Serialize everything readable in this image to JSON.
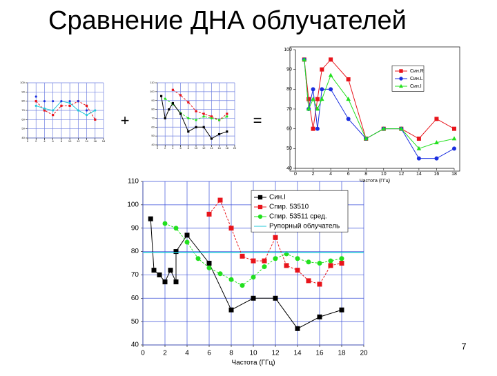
{
  "title": "Сравнение ДНА облучателей",
  "operators": [
    "+",
    "="
  ],
  "page_number": "7",
  "chart_data": [
    {
      "type": "line",
      "x_label": "Частота (ГГц)",
      "xlim": [
        0,
        20
      ],
      "xticks": [
        0,
        2,
        4,
        6,
        8,
        10,
        12,
        14,
        16,
        18,
        20
      ],
      "ylim": [
        40,
        110
      ],
      "yticks": [
        40,
        50,
        60,
        70,
        80,
        90,
        100,
        110
      ],
      "grid": true,
      "grid_color": "#3a4fd8",
      "series": [
        {
          "name": "Син.I",
          "color": "#000000",
          "marker": "square",
          "line": "solid",
          "x": [
            0.7,
            1,
            1.5,
            2,
            2.5,
            3,
            3,
            4,
            6,
            8,
            10,
            12,
            14,
            16,
            18
          ],
          "values": [
            94,
            72,
            70,
            67,
            72,
            67,
            80,
            87,
            75,
            55,
            60,
            60,
            47,
            52,
            55
          ]
        },
        {
          "name": "Спир. 53510",
          "color": "#e8141b",
          "marker": "square",
          "line": "dashed",
          "x": [
            6,
            7,
            8,
            9,
            10,
            11,
            12,
            13,
            14,
            15,
            16,
            17,
            18
          ],
          "values": [
            96,
            102,
            90,
            78,
            76,
            76,
            86,
            74,
            72,
            67.5,
            66,
            74,
            75
          ]
        },
        {
          "name": "Спир. 53511 сред.",
          "color": "#22e01e",
          "marker": "circle",
          "line": "dashed",
          "x": [
            2,
            3,
            4,
            5,
            6,
            7,
            8,
            9,
            10,
            11,
            12,
            13,
            14,
            15,
            16,
            17,
            18
          ],
          "values": [
            92,
            90,
            84,
            77,
            73,
            70.5,
            68,
            65.5,
            69,
            73.5,
            77,
            79,
            77,
            75.5,
            75,
            76,
            77
          ]
        },
        {
          "name": "Рупорный облучатель",
          "color": "#22c8d8",
          "marker": "none",
          "line": "solid",
          "x": [
            0,
            20
          ],
          "values": [
            79.5,
            79.5
          ]
        }
      ]
    },
    {
      "type": "line",
      "x_label": "Частота (ГГц)",
      "xlim": [
        0,
        18
      ],
      "xticks": [
        0,
        2,
        4,
        6,
        8,
        10,
        12,
        14,
        16,
        18
      ],
      "ylim": [
        40,
        100
      ],
      "yticks": [
        40,
        50,
        60,
        70,
        80,
        90,
        100
      ],
      "grid": false,
      "series": [
        {
          "name": "Син.R",
          "color": "#e8141b",
          "marker": "square",
          "line": "solid",
          "x": [
            1,
            1.5,
            2,
            2.5,
            3,
            4,
            6,
            8,
            10,
            12,
            14,
            16,
            18
          ],
          "values": [
            95,
            75,
            60,
            75,
            90,
            95,
            85,
            55,
            60,
            60,
            55,
            65,
            60
          ]
        },
        {
          "name": "Син.L",
          "color": "#1a2ee0",
          "marker": "circle",
          "line": "solid",
          "x": [
            1,
            1.5,
            2,
            2.5,
            3,
            4,
            6,
            8,
            10,
            12,
            14,
            16,
            18
          ],
          "values": [
            95,
            70,
            80,
            60,
            80,
            80,
            65,
            55,
            60,
            60,
            45,
            45,
            50
          ]
        },
        {
          "name": "Син.I",
          "color": "#22e01e",
          "marker": "triangle",
          "line": "solid",
          "x": [
            1,
            1.5,
            2,
            2.5,
            3,
            4,
            6,
            8,
            10,
            12,
            14,
            16,
            18
          ],
          "values": [
            95,
            70,
            75,
            70,
            75,
            87,
            75,
            55,
            60,
            60,
            50,
            53,
            55
          ]
        }
      ]
    },
    {
      "type": "line",
      "xlim": [
        0,
        18
      ],
      "xticks": [
        0,
        2,
        4,
        6,
        8,
        10,
        12,
        14,
        16,
        18
      ],
      "ylim": [
        40,
        100
      ],
      "yticks": [
        40,
        50,
        60,
        70,
        80,
        90,
        100
      ],
      "grid": true,
      "grid_color": "#7080e0",
      "series": [
        {
          "color": "#e8141b",
          "marker": "square",
          "line": "dashed",
          "x": [
            2,
            4,
            6,
            8,
            10,
            12,
            14,
            16
          ],
          "values": [
            80,
            70,
            65,
            75,
            75,
            80,
            75,
            60
          ]
        },
        {
          "color": "#22c8d8",
          "marker": "circle",
          "line": "solid",
          "x": [
            2,
            4,
            6,
            8,
            10,
            12,
            14,
            16
          ],
          "values": [
            75,
            72,
            70,
            80,
            78,
            70,
            65,
            70
          ]
        },
        {
          "color": "#1a2ee0",
          "marker": "circle",
          "line": "none",
          "x": [
            2,
            4,
            6,
            8,
            10,
            12,
            14
          ],
          "values": [
            85,
            80,
            80,
            80,
            80,
            80,
            70
          ]
        }
      ]
    },
    {
      "type": "line",
      "xlim": [
        0,
        20
      ],
      "xticks": [
        0,
        2,
        4,
        6,
        8,
        10,
        12,
        14,
        16,
        18,
        20
      ],
      "ylim": [
        40,
        110
      ],
      "yticks": [
        40,
        50,
        60,
        70,
        80,
        90,
        100,
        110
      ],
      "grid": true,
      "grid_color": "#7080e0",
      "series": [
        {
          "color": "#e8141b",
          "marker": "square",
          "line": "dashed",
          "x": [
            4,
            6,
            8,
            10,
            12,
            14,
            16,
            18
          ],
          "values": [
            102,
            96,
            88,
            78,
            75,
            72,
            68,
            75
          ]
        },
        {
          "color": "#22e01e",
          "marker": "circle",
          "line": "dashed",
          "x": [
            2,
            4,
            6,
            8,
            10,
            12,
            14,
            16,
            18
          ],
          "values": [
            92,
            86,
            76,
            70,
            68,
            72,
            70,
            68,
            72
          ]
        },
        {
          "color": "#000000",
          "marker": "square",
          "line": "solid",
          "x": [
            1,
            2,
            3,
            4,
            6,
            8,
            10,
            12,
            14,
            16,
            18
          ],
          "values": [
            95,
            70,
            80,
            87,
            75,
            55,
            60,
            60,
            47,
            52,
            55
          ]
        }
      ]
    }
  ]
}
